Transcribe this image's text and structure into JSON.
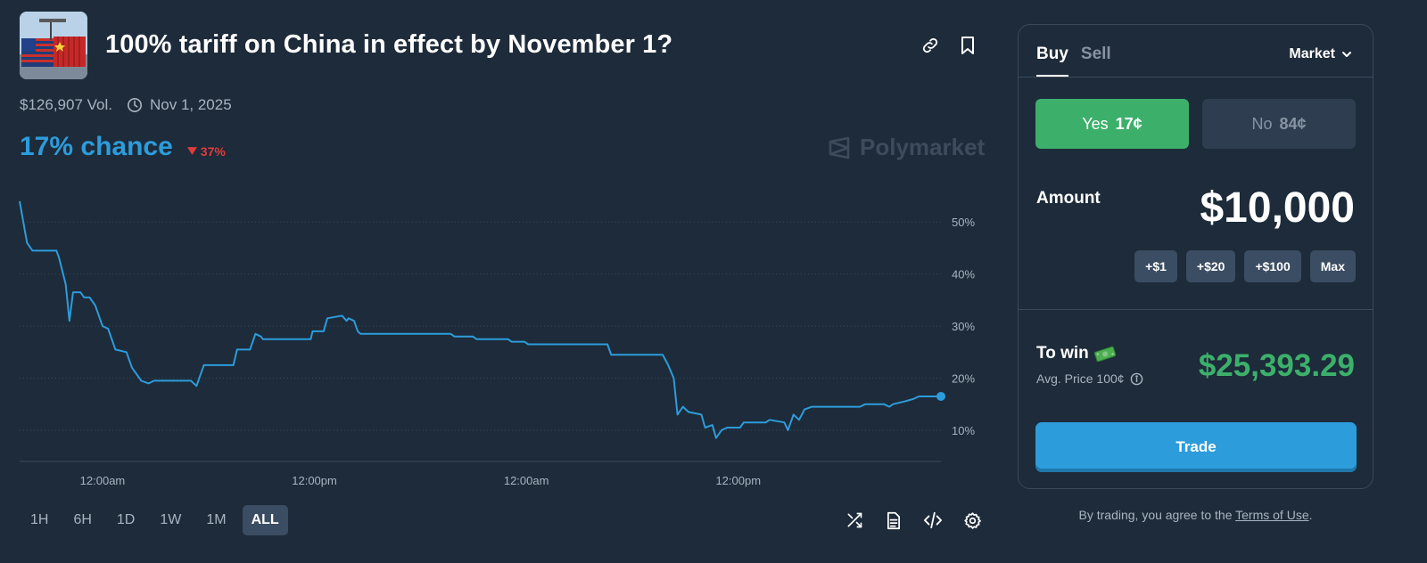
{
  "market": {
    "title": "100% tariff on China in effect by November 1?",
    "volume": "$126,907 Vol.",
    "end_date": "Nov 1, 2025",
    "chance": "17% chance",
    "change": "37%",
    "change_direction": "down",
    "brand": "Polymarket"
  },
  "chart_data": {
    "type": "line",
    "xlabel": "",
    "ylabel": "",
    "x_tick_labels": [
      "12:00am",
      "12:00pm",
      "12:00am",
      "12:00pm"
    ],
    "y_tick_labels": [
      "50%",
      "40%",
      "30%",
      "20%",
      "10%"
    ],
    "y_ticks": [
      50,
      40,
      30,
      20,
      10
    ],
    "ylim": [
      4,
      55
    ],
    "xlim": [
      0,
      1
    ],
    "x_tick_positions": [
      0.09,
      0.32,
      0.55,
      0.78
    ],
    "grid": true,
    "color": "#2d9cdb",
    "series": [
      {
        "values": [
          [
            0.0,
            54
          ],
          [
            0.008,
            46
          ],
          [
            0.014,
            44.5
          ],
          [
            0.04,
            44.5
          ],
          [
            0.043,
            43
          ],
          [
            0.05,
            38
          ],
          [
            0.054,
            31
          ],
          [
            0.058,
            36.5
          ],
          [
            0.066,
            36.5
          ],
          [
            0.07,
            35.5
          ],
          [
            0.076,
            35.5
          ],
          [
            0.082,
            34
          ],
          [
            0.09,
            30
          ],
          [
            0.096,
            29.5
          ],
          [
            0.104,
            25.5
          ],
          [
            0.116,
            25
          ],
          [
            0.122,
            22
          ],
          [
            0.132,
            19.5
          ],
          [
            0.14,
            19
          ],
          [
            0.146,
            19.5
          ],
          [
            0.186,
            19.5
          ],
          [
            0.192,
            18.5
          ],
          [
            0.2,
            22.5
          ],
          [
            0.232,
            22.5
          ],
          [
            0.236,
            25.5
          ],
          [
            0.25,
            25.5
          ],
          [
            0.256,
            28.5
          ],
          [
            0.262,
            28
          ],
          [
            0.264,
            27.5
          ],
          [
            0.316,
            27.5
          ],
          [
            0.318,
            29
          ],
          [
            0.33,
            29
          ],
          [
            0.334,
            31.5
          ],
          [
            0.35,
            32
          ],
          [
            0.355,
            31
          ],
          [
            0.357,
            31.5
          ],
          [
            0.363,
            31
          ],
          [
            0.367,
            29
          ],
          [
            0.37,
            28.5
          ],
          [
            0.468,
            28.5
          ],
          [
            0.472,
            28
          ],
          [
            0.492,
            28
          ],
          [
            0.496,
            27.5
          ],
          [
            0.53,
            27.5
          ],
          [
            0.534,
            27
          ],
          [
            0.548,
            27
          ],
          [
            0.552,
            26.5
          ],
          [
            0.566,
            26.5
          ],
          [
            0.57,
            26.5
          ],
          [
            0.638,
            26.5
          ],
          [
            0.642,
            24.5
          ],
          [
            0.698,
            24.5
          ],
          [
            0.704,
            22.5
          ],
          [
            0.71,
            20
          ],
          [
            0.714,
            13
          ],
          [
            0.72,
            14.5
          ],
          [
            0.726,
            13.5
          ],
          [
            0.74,
            13
          ],
          [
            0.744,
            10.5
          ],
          [
            0.752,
            11
          ],
          [
            0.756,
            8.5
          ],
          [
            0.762,
            10
          ],
          [
            0.768,
            10.5
          ],
          [
            0.782,
            10.5
          ],
          [
            0.786,
            11.5
          ],
          [
            0.81,
            11.5
          ],
          [
            0.814,
            12
          ],
          [
            0.83,
            11.5
          ],
          [
            0.834,
            10
          ],
          [
            0.84,
            13
          ],
          [
            0.846,
            12
          ],
          [
            0.852,
            14
          ],
          [
            0.86,
            14.5
          ],
          [
            0.912,
            14.5
          ],
          [
            0.918,
            15
          ],
          [
            0.938,
            15
          ],
          [
            0.944,
            14.5
          ],
          [
            0.948,
            15
          ],
          [
            0.96,
            15.5
          ],
          [
            0.97,
            16
          ],
          [
            0.976,
            16.5
          ],
          [
            1.0,
            16.5
          ]
        ]
      }
    ]
  },
  "ranges": [
    "1H",
    "6H",
    "1D",
    "1W",
    "1M",
    "ALL"
  ],
  "active_range": "ALL",
  "trade": {
    "tabs": [
      "Buy",
      "Sell"
    ],
    "order_type": "Market",
    "yes_label": "Yes",
    "yes_price": "17¢",
    "no_label": "No",
    "no_price": "84¢",
    "amount_label": "Amount",
    "amount": "$10,000",
    "quick_amounts": [
      "+$1",
      "+$20",
      "+$100",
      "Max"
    ],
    "to_win_label": "To win",
    "avg_price": "Avg. Price 100¢",
    "to_win_value": "$25,393.29",
    "trade_button": "Trade",
    "terms_prefix": "By trading, you agree to the ",
    "terms_link": "Terms of Use",
    "terms_suffix": "."
  },
  "colors": {
    "background": "#1d2b3a",
    "accent": "#2d9cdb",
    "yes": "#3cb06b",
    "down": "#e23b3b"
  }
}
